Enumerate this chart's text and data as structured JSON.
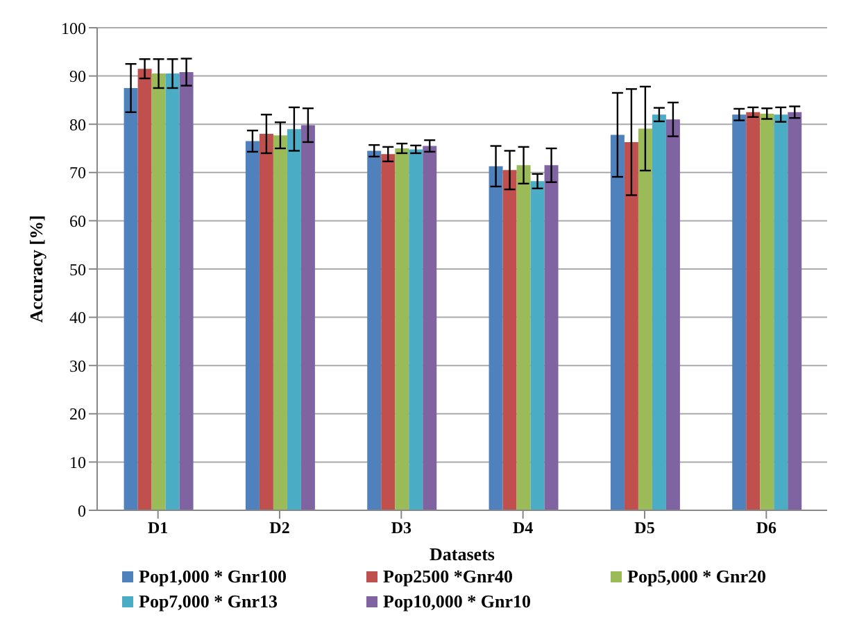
{
  "chart_data": {
    "type": "bar",
    "xlabel": "Datasets",
    "ylabel": "Accuracy [%]",
    "categories": [
      "D1",
      "D2",
      "D3",
      "D4",
      "D5",
      "D6"
    ],
    "series": [
      {
        "name": "Pop1,000 * Gnr100",
        "color": "#4f81bd",
        "values": [
          87.5,
          76.5,
          74.5,
          71.3,
          77.8,
          82
        ],
        "errors": [
          5,
          2.2,
          1.2,
          4.2,
          8.7,
          1.2
        ]
      },
      {
        "name": "Pop2500 *Gnr40",
        "color": "#c0504d",
        "values": [
          91.5,
          78,
          73.8,
          70.5,
          76.3,
          82.5
        ],
        "errors": [
          2,
          4,
          1.5,
          4,
          11,
          1
        ]
      },
      {
        "name": "Pop5,000 * Gnr20",
        "color": "#9bbb59",
        "values": [
          90.5,
          77.7,
          75,
          71.5,
          79.1,
          82.2
        ],
        "errors": [
          3,
          2.7,
          1,
          3.8,
          8.7,
          1.1
        ]
      },
      {
        "name": "Pop7,000 * Gnr13",
        "color": "#4bacc6",
        "values": [
          90.5,
          79,
          74.8,
          68.2,
          82,
          82
        ],
        "errors": [
          3,
          4.5,
          0.8,
          1.5,
          1.4,
          1.5
        ]
      },
      {
        "name": "Pop10,000 * Gnr10",
        "color": "#8064a2",
        "values": [
          90.8,
          79.8,
          75.5,
          71.5,
          81,
          82.5
        ],
        "errors": [
          2.8,
          3.5,
          1.2,
          3.5,
          3.5,
          1.2
        ]
      }
    ],
    "ylim": [
      0,
      100
    ],
    "yticks": [
      0,
      10,
      20,
      30,
      40,
      50,
      60,
      70,
      80,
      90,
      100
    ],
    "grid": "y",
    "legend": "bottom"
  }
}
